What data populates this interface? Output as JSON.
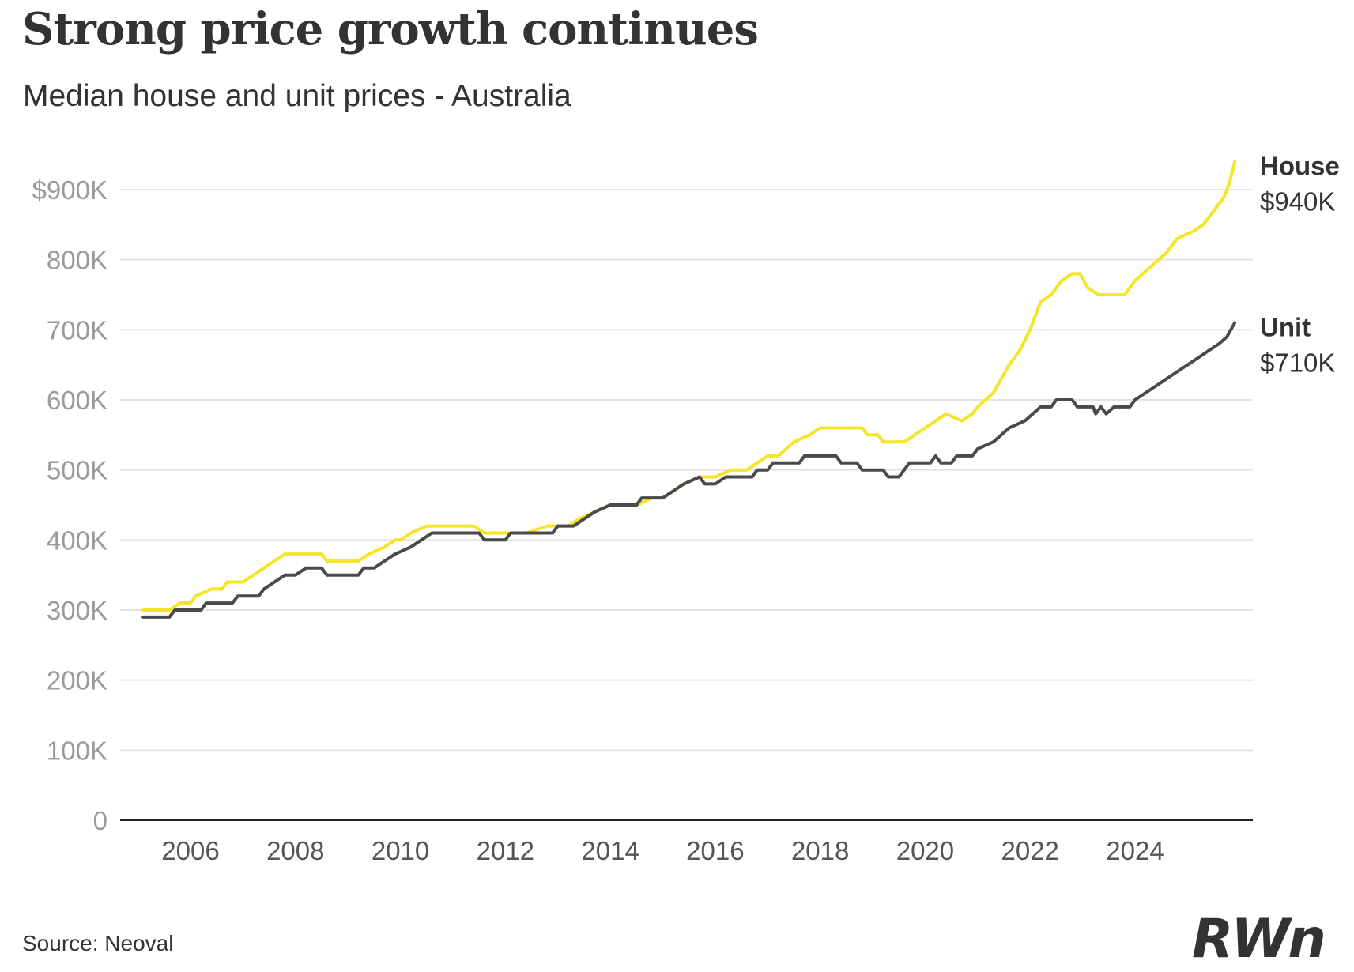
{
  "header": {
    "title": "Strong price growth continues",
    "subtitle": "Median house and unit prices - Australia"
  },
  "footer": {
    "source": "Source: Neoval",
    "logo_text": "RWn"
  },
  "colors": {
    "house": "#f4e526",
    "unit": "#4a4a4a",
    "grid": "#e3e3e3",
    "axis": "#222222",
    "tick_label": "#9a9a9a",
    "text": "#333333"
  },
  "chart_data": {
    "type": "line",
    "title": "Strong price growth continues",
    "subtitle": "Median house and unit prices - Australia",
    "xlabel": "",
    "ylabel": "",
    "xlim": [
      2005.1,
      2025.8
    ],
    "ylim": [
      0,
      940000
    ],
    "grid": "horizontal",
    "legend": "end-labels-right",
    "y_ticks": [
      0,
      100000,
      200000,
      300000,
      400000,
      500000,
      600000,
      700000,
      800000,
      900000
    ],
    "y_tick_labels": [
      "0",
      "100K",
      "200K",
      "300K",
      "400K",
      "500K",
      "600K",
      "700K",
      "800K",
      "$900K"
    ],
    "x_ticks": [
      2006,
      2008,
      2010,
      2012,
      2014,
      2016,
      2018,
      2020,
      2022,
      2024
    ],
    "x_tick_labels": [
      "2006",
      "2008",
      "2010",
      "2012",
      "2014",
      "2016",
      "2018",
      "2020",
      "2022",
      "2024"
    ],
    "series": [
      {
        "name": "House",
        "end_label": "$940K",
        "points": [
          [
            2005.1,
            300000
          ],
          [
            2005.6,
            300000
          ],
          [
            2005.8,
            310000
          ],
          [
            2006.0,
            310000
          ],
          [
            2006.1,
            320000
          ],
          [
            2006.4,
            330000
          ],
          [
            2006.6,
            330000
          ],
          [
            2006.7,
            340000
          ],
          [
            2007.0,
            340000
          ],
          [
            2007.2,
            350000
          ],
          [
            2007.4,
            360000
          ],
          [
            2007.6,
            370000
          ],
          [
            2007.8,
            380000
          ],
          [
            2008.0,
            380000
          ],
          [
            2008.5,
            380000
          ],
          [
            2008.6,
            370000
          ],
          [
            2009.2,
            370000
          ],
          [
            2009.4,
            380000
          ],
          [
            2009.7,
            390000
          ],
          [
            2009.9,
            400000
          ],
          [
            2010.0,
            400000
          ],
          [
            2010.2,
            410000
          ],
          [
            2010.5,
            420000
          ],
          [
            2011.0,
            420000
          ],
          [
            2011.4,
            420000
          ],
          [
            2011.6,
            410000
          ],
          [
            2012.4,
            410000
          ],
          [
            2012.8,
            420000
          ],
          [
            2013.2,
            420000
          ],
          [
            2013.4,
            430000
          ],
          [
            2013.7,
            440000
          ],
          [
            2014.0,
            450000
          ],
          [
            2014.5,
            450000
          ],
          [
            2014.8,
            460000
          ],
          [
            2015.0,
            460000
          ],
          [
            2015.2,
            470000
          ],
          [
            2015.4,
            480000
          ],
          [
            2015.7,
            490000
          ],
          [
            2016.0,
            490000
          ],
          [
            2016.3,
            500000
          ],
          [
            2016.6,
            500000
          ],
          [
            2016.8,
            510000
          ],
          [
            2017.0,
            520000
          ],
          [
            2017.2,
            520000
          ],
          [
            2017.5,
            540000
          ],
          [
            2017.8,
            550000
          ],
          [
            2018.0,
            560000
          ],
          [
            2018.5,
            560000
          ],
          [
            2018.8,
            560000
          ],
          [
            2018.9,
            550000
          ],
          [
            2019.1,
            550000
          ],
          [
            2019.2,
            540000
          ],
          [
            2019.6,
            540000
          ],
          [
            2019.8,
            550000
          ],
          [
            2020.0,
            560000
          ],
          [
            2020.2,
            570000
          ],
          [
            2020.4,
            580000
          ],
          [
            2020.7,
            570000
          ],
          [
            2020.9,
            580000
          ],
          [
            2021.0,
            590000
          ],
          [
            2021.3,
            610000
          ],
          [
            2021.6,
            650000
          ],
          [
            2021.8,
            670000
          ],
          [
            2022.0,
            700000
          ],
          [
            2022.2,
            740000
          ],
          [
            2022.4,
            750000
          ],
          [
            2022.6,
            770000
          ],
          [
            2022.8,
            780000
          ],
          [
            2022.95,
            780000
          ],
          [
            2023.1,
            760000
          ],
          [
            2023.3,
            750000
          ],
          [
            2023.8,
            750000
          ],
          [
            2024.0,
            770000
          ],
          [
            2024.3,
            790000
          ],
          [
            2024.6,
            810000
          ],
          [
            2024.8,
            830000
          ],
          [
            2025.1,
            840000
          ],
          [
            2025.3,
            850000
          ],
          [
            2025.5,
            870000
          ],
          [
            2025.7,
            890000
          ],
          [
            2025.8,
            910000
          ],
          [
            2025.9,
            940000
          ]
        ]
      },
      {
        "name": "Unit",
        "end_label": "$710K",
        "points": [
          [
            2005.1,
            290000
          ],
          [
            2005.6,
            290000
          ],
          [
            2005.7,
            300000
          ],
          [
            2006.2,
            300000
          ],
          [
            2006.3,
            310000
          ],
          [
            2006.8,
            310000
          ],
          [
            2006.9,
            320000
          ],
          [
            2007.3,
            320000
          ],
          [
            2007.4,
            330000
          ],
          [
            2007.6,
            340000
          ],
          [
            2007.8,
            350000
          ],
          [
            2008.0,
            350000
          ],
          [
            2008.2,
            360000
          ],
          [
            2008.5,
            360000
          ],
          [
            2008.6,
            350000
          ],
          [
            2009.2,
            350000
          ],
          [
            2009.3,
            360000
          ],
          [
            2009.5,
            360000
          ],
          [
            2009.7,
            370000
          ],
          [
            2009.9,
            380000
          ],
          [
            2010.2,
            390000
          ],
          [
            2010.4,
            400000
          ],
          [
            2010.6,
            410000
          ],
          [
            2011.0,
            410000
          ],
          [
            2011.5,
            410000
          ],
          [
            2011.6,
            400000
          ],
          [
            2012.0,
            400000
          ],
          [
            2012.1,
            410000
          ],
          [
            2012.9,
            410000
          ],
          [
            2013.0,
            420000
          ],
          [
            2013.3,
            420000
          ],
          [
            2013.5,
            430000
          ],
          [
            2013.7,
            440000
          ],
          [
            2014.0,
            450000
          ],
          [
            2014.5,
            450000
          ],
          [
            2014.6,
            460000
          ],
          [
            2015.0,
            460000
          ],
          [
            2015.2,
            470000
          ],
          [
            2015.4,
            480000
          ],
          [
            2015.7,
            490000
          ],
          [
            2015.8,
            480000
          ],
          [
            2016.0,
            480000
          ],
          [
            2016.2,
            490000
          ],
          [
            2016.7,
            490000
          ],
          [
            2016.8,
            500000
          ],
          [
            2017.0,
            500000
          ],
          [
            2017.1,
            510000
          ],
          [
            2017.6,
            510000
          ],
          [
            2017.7,
            520000
          ],
          [
            2018.3,
            520000
          ],
          [
            2018.4,
            510000
          ],
          [
            2018.7,
            510000
          ],
          [
            2018.8,
            500000
          ],
          [
            2019.2,
            500000
          ],
          [
            2019.3,
            490000
          ],
          [
            2019.5,
            490000
          ],
          [
            2019.6,
            500000
          ],
          [
            2019.7,
            510000
          ],
          [
            2020.1,
            510000
          ],
          [
            2020.2,
            520000
          ],
          [
            2020.3,
            510000
          ],
          [
            2020.5,
            510000
          ],
          [
            2020.6,
            520000
          ],
          [
            2020.9,
            520000
          ],
          [
            2021.0,
            530000
          ],
          [
            2021.3,
            540000
          ],
          [
            2021.6,
            560000
          ],
          [
            2021.9,
            570000
          ],
          [
            2022.2,
            590000
          ],
          [
            2022.4,
            590000
          ],
          [
            2022.5,
            600000
          ],
          [
            2022.8,
            600000
          ],
          [
            2022.9,
            590000
          ],
          [
            2023.2,
            590000
          ],
          [
            2023.25,
            580000
          ],
          [
            2023.35,
            590000
          ],
          [
            2023.45,
            580000
          ],
          [
            2023.6,
            590000
          ],
          [
            2023.9,
            590000
          ],
          [
            2024.0,
            600000
          ],
          [
            2024.2,
            610000
          ],
          [
            2024.4,
            620000
          ],
          [
            2024.6,
            630000
          ],
          [
            2024.8,
            640000
          ],
          [
            2025.0,
            650000
          ],
          [
            2025.2,
            660000
          ],
          [
            2025.4,
            670000
          ],
          [
            2025.6,
            680000
          ],
          [
            2025.75,
            690000
          ],
          [
            2025.9,
            710000
          ]
        ]
      }
    ]
  }
}
